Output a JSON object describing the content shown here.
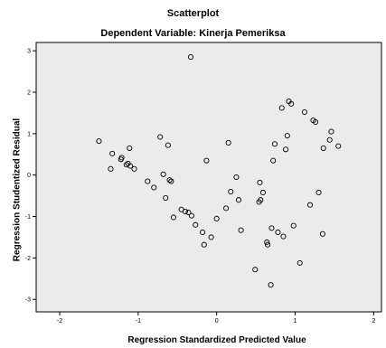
{
  "chart_data": {
    "type": "scatter",
    "title": "Scatterplot",
    "subtitle": "Dependent Variable: Kinerja Pemeriksa",
    "xlabel": "Regression Standardized Predicted Value",
    "ylabel": "Regression Studentized Residual",
    "xlim": [
      -2.3,
      2.1
    ],
    "ylim": [
      -3.3,
      3.2
    ],
    "xticks": [
      "-2",
      "-1",
      "0",
      "1",
      "2"
    ],
    "xtick_values": [
      -2,
      -1,
      0,
      1,
      2
    ],
    "yticks": [
      "3",
      "2",
      "1",
      "0",
      "-1",
      "-2",
      "-3"
    ],
    "ytick_values": [
      3,
      2,
      1,
      0,
      -1,
      -2,
      -3
    ],
    "grid": false,
    "colors": {
      "plot_background": "#ebebeb",
      "marker": "#000000",
      "frame": "#000000"
    },
    "x": [
      -0.33,
      -1.5,
      -1.33,
      -1.35,
      -1.22,
      -1.21,
      -1.15,
      -1.13,
      -1.1,
      -1.11,
      -1.05,
      -0.88,
      -0.8,
      -0.72,
      -0.68,
      -0.65,
      -0.62,
      -0.6,
      -0.58,
      -0.55,
      -0.45,
      -0.4,
      -0.36,
      -0.32,
      -0.27,
      -0.18,
      -0.16,
      -0.13,
      -0.07,
      0.0,
      0.12,
      0.15,
      0.18,
      0.25,
      0.28,
      0.31,
      0.49,
      0.55,
      0.56,
      0.54,
      0.59,
      0.64,
      0.65,
      0.69,
      0.7,
      0.72,
      0.74,
      0.78,
      0.83,
      0.85,
      0.88,
      0.9,
      0.92,
      0.95,
      0.98,
      1.06,
      1.12,
      1.19,
      1.23,
      1.26,
      1.3,
      1.35,
      1.36,
      1.44,
      1.46,
      1.55
    ],
    "y": [
      2.85,
      0.82,
      0.52,
      0.15,
      0.38,
      0.42,
      0.25,
      0.28,
      0.22,
      0.65,
      0.15,
      -0.15,
      -0.3,
      0.92,
      0.02,
      -0.55,
      0.72,
      -0.12,
      -0.15,
      -1.02,
      -0.83,
      -0.88,
      -0.9,
      -0.98,
      -1.2,
      -1.38,
      -1.68,
      0.35,
      -1.5,
      -1.05,
      -0.8,
      0.78,
      -0.4,
      -0.05,
      -0.6,
      -1.33,
      -2.28,
      -0.18,
      -0.6,
      -0.65,
      -0.42,
      -1.62,
      -1.68,
      -2.65,
      -1.28,
      0.35,
      0.75,
      -1.38,
      1.62,
      -1.48,
      0.62,
      0.95,
      1.78,
      1.72,
      -1.22,
      -2.12,
      1.52,
      -0.72,
      1.32,
      1.28,
      -0.42,
      -1.42,
      0.65,
      0.85,
      1.05,
      0.7
    ]
  }
}
